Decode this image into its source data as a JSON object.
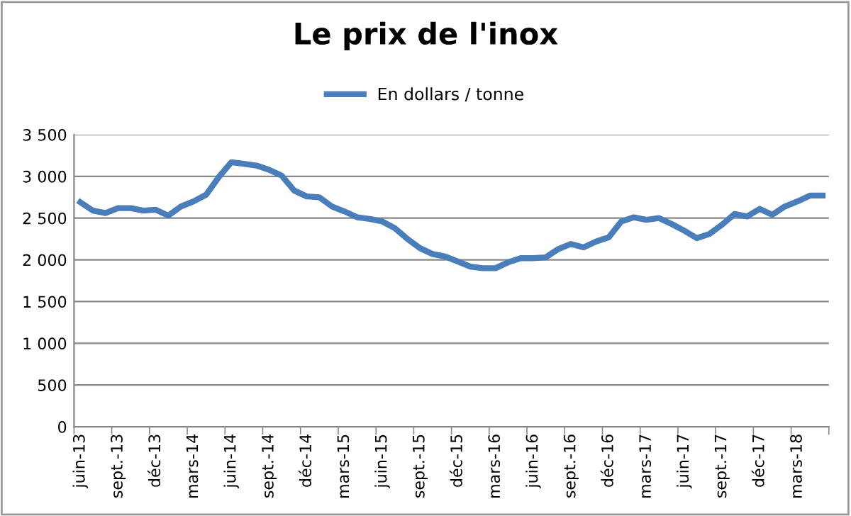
{
  "chart_data": {
    "type": "line",
    "title": "Le prix de l'inox",
    "categories": [
      "juin-13",
      null,
      null,
      "sept.-13",
      null,
      null,
      "déc-13",
      null,
      null,
      "mars-14",
      null,
      null,
      "juin-14",
      null,
      null,
      "sept.-14",
      null,
      null,
      "déc-14",
      null,
      null,
      "mars-15",
      null,
      null,
      "juin-15",
      null,
      null,
      "sept.-15",
      null,
      null,
      "déc-15",
      null,
      null,
      "mars-16",
      null,
      null,
      "juin-16",
      null,
      null,
      "sept.-16",
      null,
      null,
      "déc-16",
      null,
      null,
      "mars-17",
      null,
      null,
      "juin-17",
      null,
      null,
      "sept.-17",
      null,
      null,
      "déc-17",
      null,
      null,
      "mars-18",
      null,
      null
    ],
    "series": [
      {
        "name": "En dollars / tonne",
        "color": "#4a7ebb",
        "values": [
          2690,
          2590,
          2560,
          2620,
          2620,
          2590,
          2600,
          2530,
          2640,
          2700,
          2780,
          2990,
          3170,
          3150,
          3130,
          3080,
          3010,
          2830,
          2760,
          2750,
          2640,
          2580,
          2510,
          2490,
          2460,
          2380,
          2250,
          2140,
          2070,
          2040,
          1980,
          1920,
          1900,
          1900,
          1970,
          2020,
          2020,
          2030,
          2130,
          2190,
          2150,
          2220,
          2270,
          2460,
          2510,
          2480,
          2500,
          2430,
          2350,
          2260,
          2310,
          2420,
          2550,
          2520,
          2610,
          2540,
          2640,
          2700,
          2770,
          2770
        ]
      }
    ],
    "ylim": [
      0,
      3500
    ],
    "yticks": [
      {
        "value": 0,
        "label": "0"
      },
      {
        "value": 500,
        "label": "500"
      },
      {
        "value": 1000,
        "label": "1 000"
      },
      {
        "value": 1500,
        "label": "1 500"
      },
      {
        "value": 2000,
        "label": "2 000"
      },
      {
        "value": 2500,
        "label": "2 500"
      },
      {
        "value": 3000,
        "label": "3 000"
      },
      {
        "value": 3500,
        "label": "3 500"
      }
    ],
    "grid": "y",
    "legend": "top",
    "marker": "none",
    "line_style": "solid"
  }
}
